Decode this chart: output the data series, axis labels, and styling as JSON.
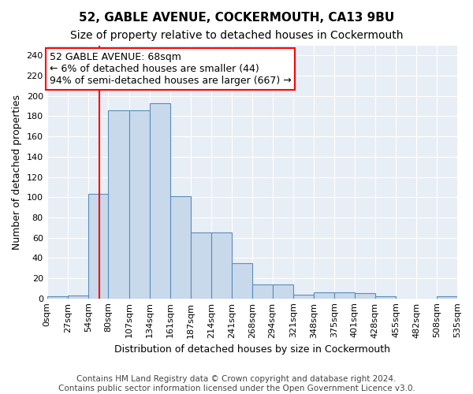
{
  "title": "52, GABLE AVENUE, COCKERMOUTH, CA13 9BU",
  "subtitle": "Size of property relative to detached houses in Cockermouth",
  "xlabel": "Distribution of detached houses by size in Cockermouth",
  "ylabel": "Number of detached properties",
  "bin_edges": [
    0,
    27,
    54,
    80,
    107,
    134,
    161,
    187,
    214,
    241,
    268,
    294,
    321,
    348,
    375,
    401,
    428,
    455,
    482,
    508,
    535
  ],
  "bar_values": [
    2,
    3,
    103,
    186,
    186,
    193,
    101,
    65,
    65,
    35,
    14,
    14,
    4,
    6,
    6,
    5,
    2,
    0,
    0,
    2
  ],
  "bar_color": "#c9d9ec",
  "bar_edge_color": "#5b8db8",
  "red_line_x": 68,
  "annotation_text": "52 GABLE AVENUE: 68sqm\n← 6% of detached houses are smaller (44)\n94% of semi-detached houses are larger (667) →",
  "annotation_box_color": "white",
  "annotation_box_edge_color": "red",
  "ylim": [
    0,
    250
  ],
  "yticks": [
    0,
    20,
    40,
    60,
    80,
    100,
    120,
    140,
    160,
    180,
    200,
    220,
    240
  ],
  "background_color": "#e8eef5",
  "grid_color": "white",
  "footnote": "Contains HM Land Registry data © Crown copyright and database right 2024.\nContains public sector information licensed under the Open Government Licence v3.0.",
  "title_fontsize": 11,
  "subtitle_fontsize": 10,
  "xlabel_fontsize": 9,
  "ylabel_fontsize": 9,
  "tick_fontsize": 8,
  "annotation_fontsize": 9,
  "footnote_fontsize": 7.5
}
